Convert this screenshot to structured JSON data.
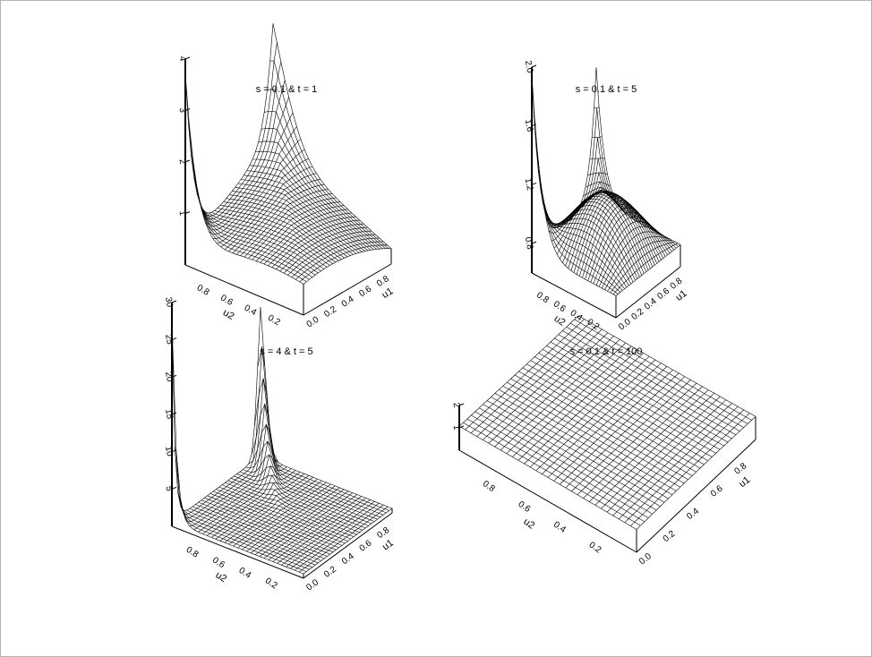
{
  "chart_data": [
    {
      "type": "surface",
      "title": "s = 0.1   &   t = 1",
      "xlabel": "u1",
      "ylabel": "u2",
      "zlabel": "",
      "xlim": [
        0,
        1
      ],
      "ylim": [
        0,
        1
      ],
      "zlim": [
        0,
        4
      ],
      "xticks": [
        "0.0",
        "0.2",
        "0.4",
        "0.6",
        "0.8"
      ],
      "yticks": [
        "0.2",
        "0.4",
        "0.6",
        "0.8"
      ],
      "zticks": [
        "1",
        "2",
        "3",
        "4"
      ],
      "parameters": {
        "s": 0.1,
        "t": 1
      },
      "peak_values": [
        4,
        2.6
      ]
    },
    {
      "type": "surface",
      "title": "s = 0.1   &   t = 5",
      "xlabel": "u1",
      "ylabel": "u2",
      "zlabel": "",
      "xlim": [
        0,
        1
      ],
      "ylim": [
        0,
        1
      ],
      "zlim": [
        0.6,
        2.0
      ],
      "xticks": [
        "0.0",
        "0.2",
        "0.4",
        "0.6",
        "0.8"
      ],
      "yticks": [
        "0.2",
        "0.4",
        "0.6",
        "0.8"
      ],
      "zticks": [
        "0.8",
        "1.2",
        "1.6",
        "2.0"
      ],
      "parameters": {
        "s": 0.1,
        "t": 5
      },
      "peak_values": [
        1.9,
        1.65
      ]
    },
    {
      "type": "surface",
      "title": "s = 4   &   t = 5",
      "xlabel": "u1",
      "ylabel": "u2",
      "zlabel": "",
      "xlim": [
        0,
        1
      ],
      "ylim": [
        0,
        1
      ],
      "zlim": [
        0,
        30
      ],
      "xticks": [
        "0.0",
        "0.2",
        "0.4",
        "0.6",
        "0.8"
      ],
      "yticks": [
        "0.2",
        "0.4",
        "0.6",
        "0.8"
      ],
      "zticks": [
        "5",
        "10",
        "15",
        "20",
        "25",
        "30"
      ],
      "parameters": {
        "s": 4,
        "t": 5
      },
      "peak_values": [
        28,
        22
      ]
    },
    {
      "type": "surface",
      "title": "s = 0.1   &   t = 100",
      "xlabel": "u1",
      "ylabel": "u2",
      "zlabel": "",
      "xlim": [
        0,
        1
      ],
      "ylim": [
        0,
        1
      ],
      "zlim": [
        0,
        2
      ],
      "xticks": [
        "0.0",
        "0.2",
        "0.4",
        "0.6",
        "0.8"
      ],
      "yticks": [
        "0.2",
        "0.4",
        "0.6",
        "0.8"
      ],
      "zticks": [
        "1",
        "2"
      ],
      "parameters": {
        "s": 0.1,
        "t": 100
      },
      "peak_values": [
        1.02,
        1.02
      ]
    }
  ]
}
